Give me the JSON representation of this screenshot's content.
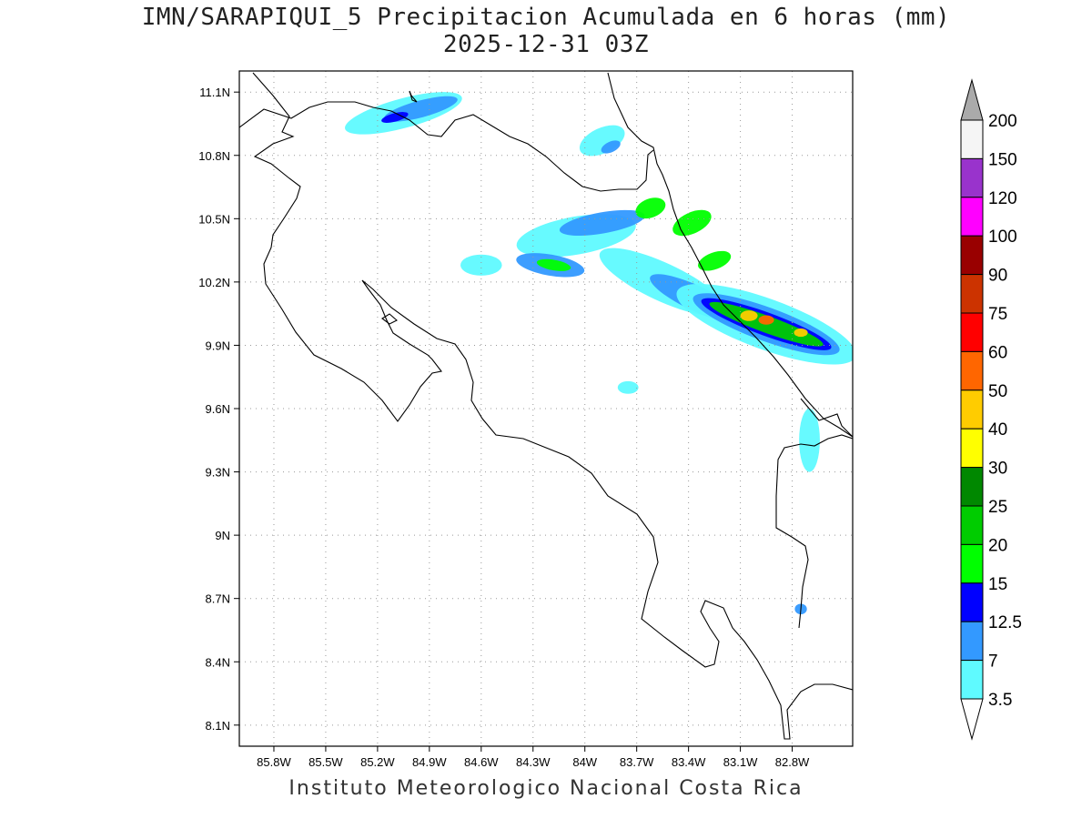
{
  "title": {
    "line1": "IMN/SARAPIQUI_5 Precipitacion Acumulada en 6 horas (mm)",
    "line2": "2025-12-31 03Z"
  },
  "footer": "Instituto Meteorologico Nacional Costa Rica",
  "map": {
    "lon_range": [
      -86.0,
      -82.45
    ],
    "lat_range": [
      8.0,
      11.2
    ],
    "grid": true,
    "lat_ticks": [
      {
        "value": 11.1,
        "label": "11.1N"
      },
      {
        "value": 10.8,
        "label": "10.8N"
      },
      {
        "value": 10.5,
        "label": "10.5N"
      },
      {
        "value": 10.2,
        "label": "10.2N"
      },
      {
        "value": 9.9,
        "label": "9.9N"
      },
      {
        "value": 9.6,
        "label": "9.6N"
      },
      {
        "value": 9.3,
        "label": "9.3N"
      },
      {
        "value": 9.0,
        "label": "9N"
      },
      {
        "value": 8.7,
        "label": "8.7N"
      },
      {
        "value": 8.4,
        "label": "8.4N"
      },
      {
        "value": 8.1,
        "label": "8.1N"
      }
    ],
    "lon_ticks": [
      {
        "value": -85.8,
        "label": "85.8W"
      },
      {
        "value": -85.5,
        "label": "85.5W"
      },
      {
        "value": -85.2,
        "label": "85.2W"
      },
      {
        "value": -84.9,
        "label": "84.9W"
      },
      {
        "value": -84.6,
        "label": "84.6W"
      },
      {
        "value": -84.3,
        "label": "84.3W"
      },
      {
        "value": -84.0,
        "label": "84W"
      },
      {
        "value": -83.7,
        "label": "83.7W"
      },
      {
        "value": -83.4,
        "label": "83.4W"
      },
      {
        "value": -83.1,
        "label": "83.1W"
      },
      {
        "value": -82.8,
        "label": "82.8W"
      }
    ]
  },
  "colorbar": {
    "labels": [
      "3.5",
      "7",
      "12.5",
      "15",
      "20",
      "25",
      "30",
      "40",
      "50",
      "60",
      "75",
      "90",
      "100",
      "120",
      "150",
      "200"
    ],
    "colors": [
      "#5ffaff",
      "#3399ff",
      "#0000ff",
      "#00ff00",
      "#00cc00",
      "#008800",
      "#ffff00",
      "#ffcc00",
      "#ff6600",
      "#ff0000",
      "#cc3300",
      "#990000",
      "#ff00ff",
      "#9933cc",
      "#f5f5f5"
    ],
    "top_arrow_color": "#aaaaaa",
    "bottom_arrow_color": "#ffffff"
  },
  "precip_cells": [
    {
      "lon": -85.05,
      "lat": 11.0,
      "rx": 0.35,
      "ry": 0.07,
      "rot": -15,
      "level": 0
    },
    {
      "lon": -84.95,
      "lat": 11.02,
      "rx": 0.22,
      "ry": 0.04,
      "rot": -15,
      "level": 1
    },
    {
      "lon": -85.1,
      "lat": 10.98,
      "rx": 0.08,
      "ry": 0.02,
      "rot": -15,
      "level": 2
    },
    {
      "lon": -83.9,
      "lat": 10.87,
      "rx": 0.14,
      "ry": 0.06,
      "rot": -25,
      "level": 0
    },
    {
      "lon": -83.85,
      "lat": 10.84,
      "rx": 0.06,
      "ry": 0.025,
      "rot": -25,
      "level": 1
    },
    {
      "lon": -84.05,
      "lat": 10.42,
      "rx": 0.35,
      "ry": 0.09,
      "rot": -10,
      "level": 0
    },
    {
      "lon": -83.9,
      "lat": 10.48,
      "rx": 0.25,
      "ry": 0.05,
      "rot": -10,
      "level": 1
    },
    {
      "lon": -83.62,
      "lat": 10.55,
      "rx": 0.09,
      "ry": 0.045,
      "rot": -20,
      "level": 3
    },
    {
      "lon": -84.2,
      "lat": 10.28,
      "rx": 0.2,
      "ry": 0.05,
      "rot": 10,
      "level": 1
    },
    {
      "lon": -84.18,
      "lat": 10.28,
      "rx": 0.1,
      "ry": 0.025,
      "rot": 10,
      "level": 3
    },
    {
      "lon": -83.55,
      "lat": 10.2,
      "rx": 0.4,
      "ry": 0.09,
      "rot": 25,
      "level": 0
    },
    {
      "lon": -83.35,
      "lat": 10.12,
      "rx": 0.3,
      "ry": 0.06,
      "rot": 25,
      "level": 1
    },
    {
      "lon": -83.38,
      "lat": 10.48,
      "rx": 0.12,
      "ry": 0.05,
      "rot": -25,
      "level": 3
    },
    {
      "lon": -83.25,
      "lat": 10.3,
      "rx": 0.1,
      "ry": 0.04,
      "rot": -20,
      "level": 3
    },
    {
      "lon": -82.95,
      "lat": 10.0,
      "rx": 0.55,
      "ry": 0.12,
      "rot": 20,
      "level": 0
    },
    {
      "lon": -82.95,
      "lat": 10.0,
      "rx": 0.45,
      "ry": 0.08,
      "rot": 20,
      "level": 1
    },
    {
      "lon": -82.95,
      "lat": 10.0,
      "rx": 0.4,
      "ry": 0.055,
      "rot": 20,
      "level": 2
    },
    {
      "lon": -82.95,
      "lat": 10.0,
      "rx": 0.35,
      "ry": 0.04,
      "rot": 20,
      "level": 4
    },
    {
      "lon": -83.05,
      "lat": 10.04,
      "rx": 0.05,
      "ry": 0.025,
      "rot": 0,
      "level": 7
    },
    {
      "lon": -82.95,
      "lat": 10.02,
      "rx": 0.045,
      "ry": 0.022,
      "rot": 0,
      "level": 8
    },
    {
      "lon": -82.75,
      "lat": 9.96,
      "rx": 0.04,
      "ry": 0.02,
      "rot": 0,
      "level": 7
    },
    {
      "lon": -84.6,
      "lat": 10.28,
      "rx": 0.12,
      "ry": 0.05,
      "rot": 0,
      "level": 0
    },
    {
      "lon": -83.75,
      "lat": 9.7,
      "rx": 0.06,
      "ry": 0.03,
      "rot": 0,
      "level": 0
    },
    {
      "lon": -82.7,
      "lat": 9.45,
      "rx": 0.06,
      "ry": 0.15,
      "rot": 0,
      "level": 0
    },
    {
      "lon": -82.75,
      "lat": 8.65,
      "rx": 0.035,
      "ry": 0.025,
      "rot": 0,
      "level": 1
    }
  ]
}
